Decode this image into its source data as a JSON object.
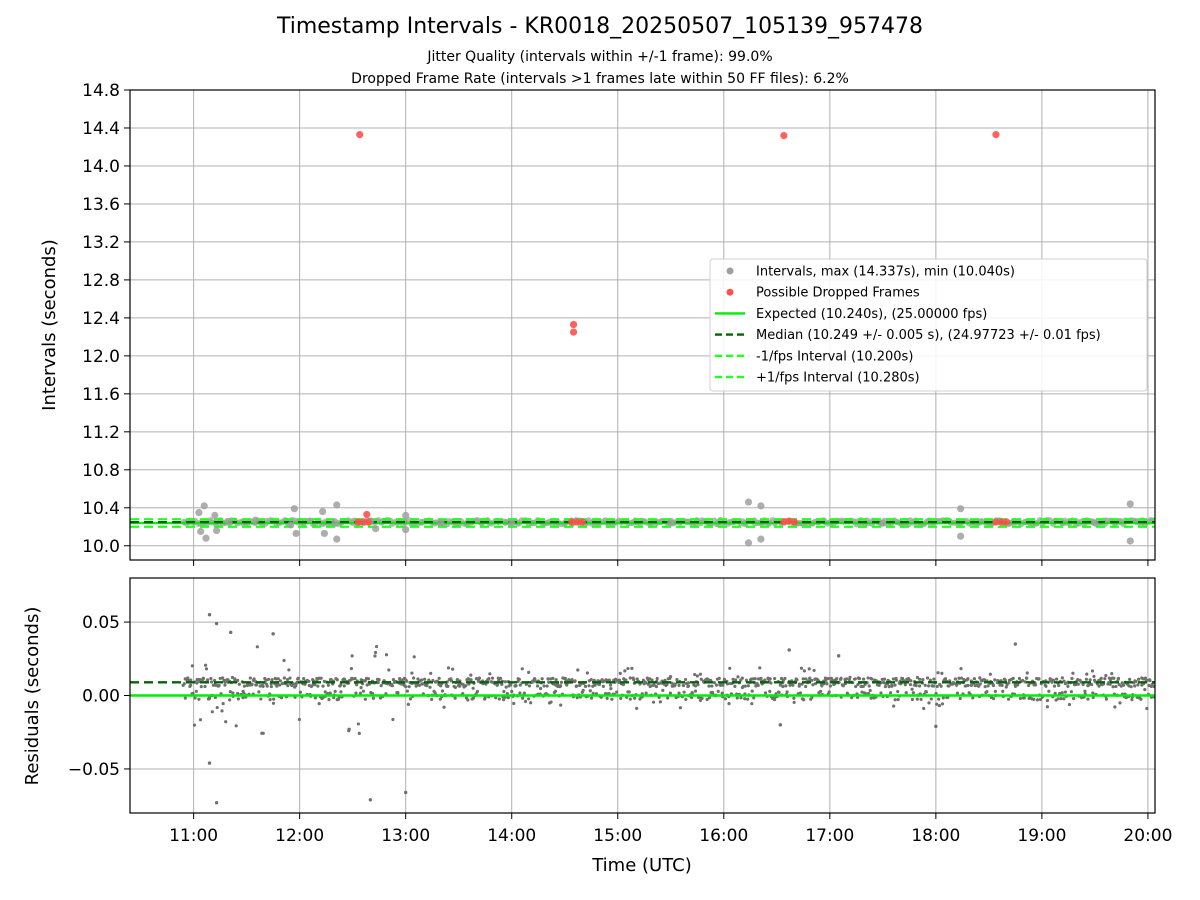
{
  "chart_data": [
    {
      "type": "scatter",
      "title": "Timestamp Intervals - KR0018_20250507_105139_957478",
      "subtitle_1": "Jitter Quality (intervals within +/-1 frame): 99.0%",
      "subtitle_2": "Dropped Frame Rate (intervals >1 frames late within 50 FF files): 6.2%",
      "ylabel": "Intervals (seconds)",
      "xlim": [
        "10:24",
        "20:04"
      ],
      "ylim": [
        9.85,
        14.8
      ],
      "y_ticks": [
        "10.0",
        "10.4",
        "10.8",
        "11.2",
        "11.6",
        "12.0",
        "12.4",
        "12.8",
        "13.2",
        "13.6",
        "14.0",
        "14.4",
        "14.8"
      ],
      "grid": true,
      "legend_position": "center-right",
      "legend": [
        "Intervals, max (14.337s), min (10.040s)",
        "Possible Dropped Frames",
        "Expected (10.240s), (25.00000 fps)",
        "Median (10.249 +/- 0.005 s), (24.97723 +/- 0.01 fps)",
        "-1/fps Interval (10.200s)",
        "+1/fps Interval (10.280s)"
      ],
      "series": [
        {
          "name": "Intervals, max (14.337s), min (10.040s)",
          "color": "#a0a0a0",
          "points": [
            {
              "x": "11:03",
              "y": 10.35
            },
            {
              "x": "11:06",
              "y": 10.42
            },
            {
              "x": "11:04",
              "y": 10.15
            },
            {
              "x": "11:07",
              "y": 10.08
            },
            {
              "x": "11:12",
              "y": 10.32
            },
            {
              "x": "11:13",
              "y": 10.16
            },
            {
              "x": "11:20",
              "y": 10.25
            },
            {
              "x": "11:35",
              "y": 10.27
            },
            {
              "x": "11:55",
              "y": 10.22
            },
            {
              "x": "11:57",
              "y": 10.39
            },
            {
              "x": "11:58",
              "y": 10.13
            },
            {
              "x": "12:13",
              "y": 10.36
            },
            {
              "x": "12:14",
              "y": 10.13
            },
            {
              "x": "12:20",
              "y": 10.25
            },
            {
              "x": "12:21",
              "y": 10.43
            },
            {
              "x": "12:21",
              "y": 10.07
            },
            {
              "x": "12:40",
              "y": 10.26
            },
            {
              "x": "12:43",
              "y": 10.18
            },
            {
              "x": "13:00",
              "y": 10.32
            },
            {
              "x": "13:00",
              "y": 10.17
            },
            {
              "x": "13:20",
              "y": 10.24
            },
            {
              "x": "14:00",
              "y": 10.24
            },
            {
              "x": "15:30",
              "y": 10.24
            },
            {
              "x": "16:14",
              "y": 10.46
            },
            {
              "x": "16:14",
              "y": 10.03
            },
            {
              "x": "16:21",
              "y": 10.42
            },
            {
              "x": "16:21",
              "y": 10.07
            },
            {
              "x": "17:30",
              "y": 10.24
            },
            {
              "x": "18:14",
              "y": 10.39
            },
            {
              "x": "18:14",
              "y": 10.1
            },
            {
              "x": "19:30",
              "y": 10.24
            },
            {
              "x": "19:50",
              "y": 10.44
            },
            {
              "x": "19:50",
              "y": 10.05
            }
          ]
        },
        {
          "name": "Possible Dropped Frames",
          "color": "#ff5050",
          "points": [
            {
              "x": "12:34",
              "y": 14.33
            },
            {
              "x": "14:35",
              "y": 12.33
            },
            {
              "x": "14:35",
              "y": 12.25
            },
            {
              "x": "16:34",
              "y": 14.32
            },
            {
              "x": "18:34",
              "y": 14.33
            },
            {
              "x": "12:33",
              "y": 10.25
            },
            {
              "x": "12:36",
              "y": 10.25
            },
            {
              "x": "12:39",
              "y": 10.25
            },
            {
              "x": "12:38",
              "y": 10.33
            },
            {
              "x": "14:34",
              "y": 10.25
            },
            {
              "x": "14:37",
              "y": 10.25
            },
            {
              "x": "14:40",
              "y": 10.25
            },
            {
              "x": "16:34",
              "y": 10.25
            },
            {
              "x": "16:37",
              "y": 10.26
            },
            {
              "x": "16:40",
              "y": 10.25
            },
            {
              "x": "18:34",
              "y": 10.25
            },
            {
              "x": "18:37",
              "y": 10.25
            },
            {
              "x": "18:40",
              "y": 10.25
            }
          ]
        }
      ],
      "reference_lines": [
        {
          "name": "Expected (10.240s), (25.00000 fps)",
          "y": 10.24,
          "color": "#00ee00",
          "style": "solid"
        },
        {
          "name": "Median (10.249 +/- 0.005 s), (24.97723 +/- 0.01 fps)",
          "y": 10.249,
          "color": "#006400",
          "style": "dashed"
        },
        {
          "name": "-1/fps Interval (10.200s)",
          "y": 10.2,
          "color": "#22ff22",
          "style": "dashed"
        },
        {
          "name": "+1/fps Interval (10.280s)",
          "y": 10.28,
          "color": "#22ff22",
          "style": "dashed"
        }
      ],
      "series_range": [
        "10:54",
        "20:04"
      ]
    },
    {
      "type": "scatter",
      "xlabel": "Time (UTC)",
      "ylabel": "Residuals (seconds)",
      "xlim": [
        "10:24",
        "20:04"
      ],
      "ylim": [
        -0.08,
        0.08
      ],
      "x_ticks": [
        "11:00",
        "12:00",
        "13:00",
        "14:00",
        "15:00",
        "16:00",
        "17:00",
        "18:00",
        "19:00",
        "20:00"
      ],
      "y_ticks": [
        "0.05",
        "0.00",
        "−0.05"
      ],
      "grid": true,
      "series": [
        {
          "name": "Residuals",
          "color": "#707070",
          "x_range": [
            "10:54",
            "20:04"
          ],
          "approx_count": 1300,
          "typical_range": [
            -0.01,
            0.02
          ],
          "outliers": [
            {
              "x": "11:09",
              "y": 0.055
            },
            {
              "x": "11:13",
              "y": 0.049
            },
            {
              "x": "11:21",
              "y": 0.043
            },
            {
              "x": "11:45",
              "y": 0.042
            },
            {
              "x": "11:09",
              "y": -0.046
            },
            {
              "x": "11:13",
              "y": -0.073
            },
            {
              "x": "12:40",
              "y": -0.071
            },
            {
              "x": "13:00",
              "y": -0.066
            },
            {
              "x": "12:28",
              "y": -0.023
            },
            {
              "x": "16:37",
              "y": 0.031
            },
            {
              "x": "17:05",
              "y": 0.027
            },
            {
              "x": "18:00",
              "y": -0.021
            },
            {
              "x": "16:32",
              "y": -0.02
            },
            {
              "x": "18:45",
              "y": 0.035
            }
          ]
        }
      ],
      "reference_lines": [
        {
          "y": 0.0,
          "color": "#00ee00",
          "style": "solid"
        },
        {
          "y": 0.009,
          "color": "#006400",
          "style": "dashed"
        }
      ]
    }
  ]
}
